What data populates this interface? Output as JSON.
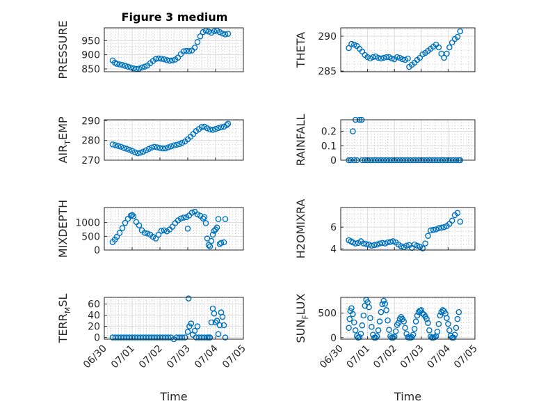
{
  "figure_title": "Figure 3 medium",
  "colors": {
    "marker": "#0072bd",
    "axis": "#262626",
    "grid": "#dcdcdc"
  },
  "chart_data": [
    {
      "type": "scatter",
      "title": "Figure 3 medium",
      "ylabel": "PRESSURE",
      "ylabel_parts": [
        "PRESSURE"
      ],
      "xlim": [
        0,
        5
      ],
      "ylim": [
        840,
        995
      ],
      "yticks": [
        850,
        900,
        950
      ],
      "yticklabels": [
        "850",
        "900",
        "950"
      ],
      "x": [
        0.3,
        0.38,
        0.45,
        0.55,
        0.65,
        0.75,
        0.85,
        0.95,
        1.05,
        1.15,
        1.25,
        1.35,
        1.45,
        1.55,
        1.65,
        1.75,
        1.85,
        1.95,
        2.05,
        2.15,
        2.25,
        2.35,
        2.45,
        2.55,
        2.65,
        2.75,
        2.85,
        2.95,
        3.05,
        3.15,
        3.25,
        3.35,
        3.45,
        3.55,
        3.65,
        3.75,
        3.85,
        3.95,
        4.05,
        4.15,
        4.25,
        4.35,
        4.45
      ],
      "y": [
        880,
        872,
        868,
        866,
        864,
        861,
        858,
        855,
        852,
        850,
        851,
        855,
        858,
        862,
        870,
        878,
        885,
        887,
        886,
        884,
        881,
        879,
        880,
        883,
        890,
        902,
        912,
        914,
        913,
        915,
        925,
        945,
        965,
        980,
        985,
        982,
        978,
        983,
        985,
        980,
        975,
        972,
        974
      ]
    },
    {
      "type": "scatter",
      "ylabel": "THETA",
      "ylabel_parts": [
        "THETA"
      ],
      "xlim": [
        0,
        5
      ],
      "ylim": [
        284.9,
        291.2
      ],
      "yticks": [
        285,
        290
      ],
      "yticklabels": [
        "285",
        "290"
      ],
      "x": [
        0.3,
        0.4,
        0.5,
        0.6,
        0.7,
        0.8,
        0.9,
        1.0,
        1.1,
        1.2,
        1.3,
        1.4,
        1.5,
        1.6,
        1.7,
        1.8,
        1.9,
        2.0,
        2.1,
        2.2,
        2.3,
        2.4,
        2.5,
        2.55,
        2.65,
        2.75,
        2.85,
        2.95,
        3.05,
        3.15,
        3.25,
        3.35,
        3.45,
        3.55,
        3.65,
        3.75,
        3.85,
        3.95,
        4.05,
        4.15,
        4.25,
        4.35,
        4.45
      ],
      "y": [
        288.3,
        288.9,
        288.8,
        288.6,
        288.2,
        287.8,
        287.3,
        287.0,
        286.8,
        287.0,
        287.1,
        286.9,
        286.8,
        286.9,
        287.0,
        287.0,
        286.8,
        286.7,
        287.0,
        286.9,
        286.7,
        286.6,
        286.8,
        285.6,
        285.9,
        286.2,
        286.6,
        286.9,
        287.4,
        287.6,
        287.9,
        288.2,
        288.5,
        288.8,
        288.4,
        287.5,
        286.9,
        287.5,
        288.4,
        289.1,
        289.6,
        289.9,
        290.7
      ]
    },
    {
      "type": "scatter",
      "ylabel": "AIR_TEMP",
      "ylabel_parts": [
        "AIR",
        "T",
        "EMP"
      ],
      "xlim": [
        0,
        5
      ],
      "ylim": [
        270,
        290.5
      ],
      "yticks": [
        270,
        280,
        290
      ],
      "yticklabels": [
        "270",
        "280",
        "290"
      ],
      "x": [
        0.3,
        0.4,
        0.5,
        0.6,
        0.7,
        0.8,
        0.9,
        1.0,
        1.1,
        1.2,
        1.3,
        1.4,
        1.5,
        1.6,
        1.7,
        1.8,
        1.9,
        2.0,
        2.1,
        2.2,
        2.3,
        2.4,
        2.5,
        2.6,
        2.7,
        2.8,
        2.9,
        3.0,
        3.1,
        3.2,
        3.3,
        3.4,
        3.5,
        3.6,
        3.7,
        3.8,
        3.9,
        4.0,
        4.1,
        4.2,
        4.3,
        4.4,
        4.45
      ],
      "y": [
        278.0,
        277.6,
        277.2,
        276.8,
        276.2,
        275.8,
        275.3,
        274.7,
        274.0,
        273.5,
        273.8,
        274.3,
        275.0,
        275.7,
        276.4,
        276.8,
        276.5,
        276.2,
        276.0,
        276.0,
        276.5,
        277.0,
        277.5,
        277.8,
        278.2,
        278.8,
        279.5,
        280.6,
        281.9,
        283.3,
        284.8,
        285.8,
        286.8,
        287.0,
        286.2,
        285.6,
        285.4,
        285.8,
        286.3,
        286.7,
        287.0,
        287.8,
        288.5
      ]
    },
    {
      "type": "scatter",
      "ylabel": "RAINFALL",
      "ylabel_parts": [
        "RAINFALL"
      ],
      "xlim": [
        0,
        5
      ],
      "ylim": [
        0,
        0.28
      ],
      "yticks": [
        0,
        0.1,
        0.2
      ],
      "yticklabels": [
        "0",
        "0.1",
        "0.2"
      ],
      "x": [
        0.3,
        0.38,
        0.45,
        0.5,
        0.55,
        0.6,
        0.7,
        0.78,
        0.8,
        0.9,
        1.0,
        1.1,
        1.2,
        1.3,
        1.4,
        1.5,
        1.6,
        1.7,
        1.8,
        1.9,
        2.0,
        2.1,
        2.2,
        2.3,
        2.4,
        2.5,
        2.6,
        2.7,
        2.8,
        2.9,
        3.0,
        3.1,
        3.2,
        3.3,
        3.4,
        3.5,
        3.6,
        3.7,
        3.8,
        3.9,
        4.0,
        4.1,
        4.2,
        4.3,
        4.4,
        4.45
      ],
      "y": [
        0,
        0,
        0.2,
        0,
        0.29,
        0,
        0.29,
        0.29,
        0,
        0,
        0,
        0,
        0,
        0,
        0,
        0,
        0,
        0,
        0,
        0,
        0,
        0,
        0,
        0,
        0,
        0,
        0,
        0,
        0,
        0,
        0,
        0,
        0,
        0,
        0,
        0,
        0,
        0,
        0,
        0,
        0,
        0,
        0,
        0,
        0,
        0
      ]
    },
    {
      "type": "scatter",
      "ylabel": "MIXDEPTH",
      "ylabel_parts": [
        "MIXDEPTH"
      ],
      "xlim": [
        0,
        5
      ],
      "ylim": [
        0,
        1550
      ],
      "yticks": [
        0,
        500,
        1000
      ],
      "yticklabels": [
        "0",
        "500",
        "1000"
      ],
      "x": [
        0.3,
        0.38,
        0.45,
        0.55,
        0.65,
        0.75,
        0.85,
        0.95,
        1.0,
        1.05,
        1.15,
        1.25,
        1.35,
        1.45,
        1.55,
        1.65,
        1.75,
        1.85,
        1.95,
        2.05,
        2.15,
        2.25,
        2.35,
        2.45,
        2.55,
        2.65,
        2.75,
        2.85,
        2.95,
        3.0,
        3.05,
        3.15,
        3.25,
        3.35,
        3.45,
        3.55,
        3.6,
        3.65,
        3.7,
        3.75,
        3.8,
        3.85,
        3.9,
        3.95,
        4.0,
        4.05,
        4.1,
        4.15,
        4.2,
        4.3,
        4.35
      ],
      "y": [
        290,
        380,
        480,
        620,
        800,
        990,
        1140,
        1250,
        1280,
        1230,
        1020,
        900,
        720,
        630,
        600,
        560,
        480,
        420,
        560,
        700,
        720,
        680,
        750,
        850,
        980,
        1080,
        1150,
        1180,
        1200,
        780,
        1260,
        1360,
        1400,
        1300,
        1250,
        1150,
        1200,
        980,
        420,
        180,
        130,
        330,
        560,
        700,
        750,
        820,
        1130,
        220,
        260,
        280,
        1130
      ]
    },
    {
      "type": "scatter",
      "ylabel": "H2OMIXRA",
      "ylabel_parts": [
        "H2OMIXRA"
      ],
      "xlim": [
        0,
        5
      ],
      "ylim": [
        3.9,
        7.8
      ],
      "yticks": [
        4,
        6
      ],
      "yticklabels": [
        "4",
        "6"
      ],
      "x": [
        0.3,
        0.38,
        0.45,
        0.55,
        0.65,
        0.75,
        0.85,
        0.95,
        1.05,
        1.15,
        1.25,
        1.35,
        1.45,
        1.55,
        1.65,
        1.75,
        1.85,
        1.95,
        2.05,
        2.15,
        2.25,
        2.35,
        2.45,
        2.55,
        2.65,
        2.75,
        2.85,
        2.95,
        3.05,
        3.15,
        3.25,
        3.35,
        3.45,
        3.55,
        3.65,
        3.75,
        3.85,
        3.95,
        4.05,
        4.15,
        4.25,
        4.35,
        4.45
      ],
      "y": [
        4.8,
        4.7,
        4.6,
        4.5,
        4.55,
        4.7,
        4.5,
        4.45,
        4.4,
        4.3,
        4.35,
        4.4,
        4.5,
        4.55,
        4.5,
        4.6,
        4.65,
        4.7,
        4.6,
        4.4,
        4.25,
        4.15,
        4.3,
        4.35,
        4.1,
        4.4,
        4.3,
        4.2,
        4.05,
        4.5,
        5.2,
        5.7,
        5.75,
        5.8,
        5.9,
        5.95,
        6.0,
        6.1,
        6.3,
        6.6,
        7.1,
        7.3,
        6.5
      ]
    },
    {
      "type": "scatter",
      "ylabel": "TERR_MSL",
      "ylabel_parts": [
        "TERR",
        "M",
        "SL"
      ],
      "xlim": [
        0,
        5
      ],
      "ylim": [
        -3,
        72
      ],
      "yticks": [
        0,
        20,
        40,
        60
      ],
      "yticklabels": [
        "0",
        "20",
        "40",
        "60"
      ],
      "xticks": [
        0,
        1,
        2,
        3,
        4,
        5
      ],
      "xticklabels": [
        "06/30",
        "07/01",
        "07/02",
        "07/03",
        "07/04",
        "07/05"
      ],
      "xlabel": "Time",
      "x": [
        0.3,
        0.4,
        0.5,
        0.6,
        0.7,
        0.8,
        0.9,
        1.0,
        1.1,
        1.2,
        1.3,
        1.4,
        1.5,
        1.6,
        1.7,
        1.8,
        1.9,
        2.0,
        2.1,
        2.2,
        2.3,
        2.4,
        2.5,
        2.6,
        2.7,
        2.8,
        2.9,
        3.0,
        3.03,
        3.06,
        3.12,
        3.18,
        3.25,
        3.3,
        3.35,
        3.4,
        3.5,
        3.6,
        3.7,
        3.75,
        3.8,
        3.85,
        3.9,
        3.95,
        4.0,
        4.05,
        4.1,
        4.15,
        4.2,
        4.25,
        4.3,
        4.35
      ],
      "y": [
        0,
        0,
        0,
        0,
        0,
        0,
        0,
        0,
        0,
        0,
        0,
        0,
        0,
        0,
        0,
        0,
        0,
        0,
        0,
        0,
        0,
        0,
        -3,
        0,
        0,
        0,
        0,
        10,
        70,
        20,
        25,
        5,
        12,
        0,
        20,
        0,
        0,
        0,
        0,
        0,
        0,
        27,
        52,
        43,
        27,
        30,
        6,
        22,
        45,
        37,
        22,
        0
      ]
    },
    {
      "type": "scatter",
      "ylabel": "SUN_FLUX",
      "ylabel_parts": [
        "SUN",
        "F",
        "LUX"
      ],
      "xlim": [
        0,
        5
      ],
      "ylim": [
        -30,
        820
      ],
      "yticks": [
        0,
        500
      ],
      "yticklabels": [
        "0",
        "500"
      ],
      "xticks": [
        0,
        1,
        2,
        3,
        4,
        5
      ],
      "xticklabels": [
        "06/30",
        "07/01",
        "07/02",
        "07/03",
        "07/04",
        "07/05"
      ],
      "xlabel": "Time",
      "x": [
        0.3,
        0.33,
        0.36,
        0.4,
        0.45,
        0.5,
        0.55,
        0.6,
        0.65,
        0.7,
        0.75,
        0.8,
        0.85,
        0.9,
        0.95,
        1.0,
        1.05,
        1.1,
        1.15,
        1.2,
        1.25,
        1.3,
        1.35,
        1.4,
        1.45,
        1.5,
        1.55,
        1.6,
        1.65,
        1.7,
        1.75,
        1.8,
        1.85,
        1.9,
        1.95,
        2.0,
        2.05,
        2.1,
        2.15,
        2.2,
        2.25,
        2.3,
        2.35,
        2.4,
        2.45,
        2.5,
        2.55,
        2.6,
        2.65,
        2.7,
        2.75,
        2.8,
        2.85,
        2.9,
        2.95,
        3.0,
        3.05,
        3.1,
        3.15,
        3.2,
        3.25,
        3.3,
        3.35,
        3.4,
        3.45,
        3.5,
        3.55,
        3.6,
        3.65,
        3.7,
        3.75,
        3.8,
        3.85,
        3.9,
        3.95,
        4.0,
        4.05,
        4.1,
        4.15,
        4.2,
        4.25,
        4.3,
        4.35,
        4.4
      ],
      "y": [
        200,
        380,
        540,
        600,
        480,
        310,
        150,
        30,
        0,
        10,
        80,
        250,
        450,
        650,
        770,
        720,
        620,
        400,
        220,
        60,
        0,
        0,
        30,
        150,
        330,
        520,
        680,
        750,
        690,
        560,
        350,
        160,
        30,
        0,
        0,
        20,
        130,
        260,
        300,
        380,
        420,
        380,
        330,
        200,
        80,
        10,
        0,
        0,
        10,
        60,
        180,
        330,
        450,
        520,
        550,
        560,
        490,
        470,
        430,
        380,
        300,
        150,
        20,
        0,
        0,
        10,
        30,
        120,
        280,
        450,
        520,
        560,
        540,
        490,
        400,
        280,
        150,
        40,
        0,
        0,
        60,
        200,
        380,
        520
      ]
    }
  ]
}
